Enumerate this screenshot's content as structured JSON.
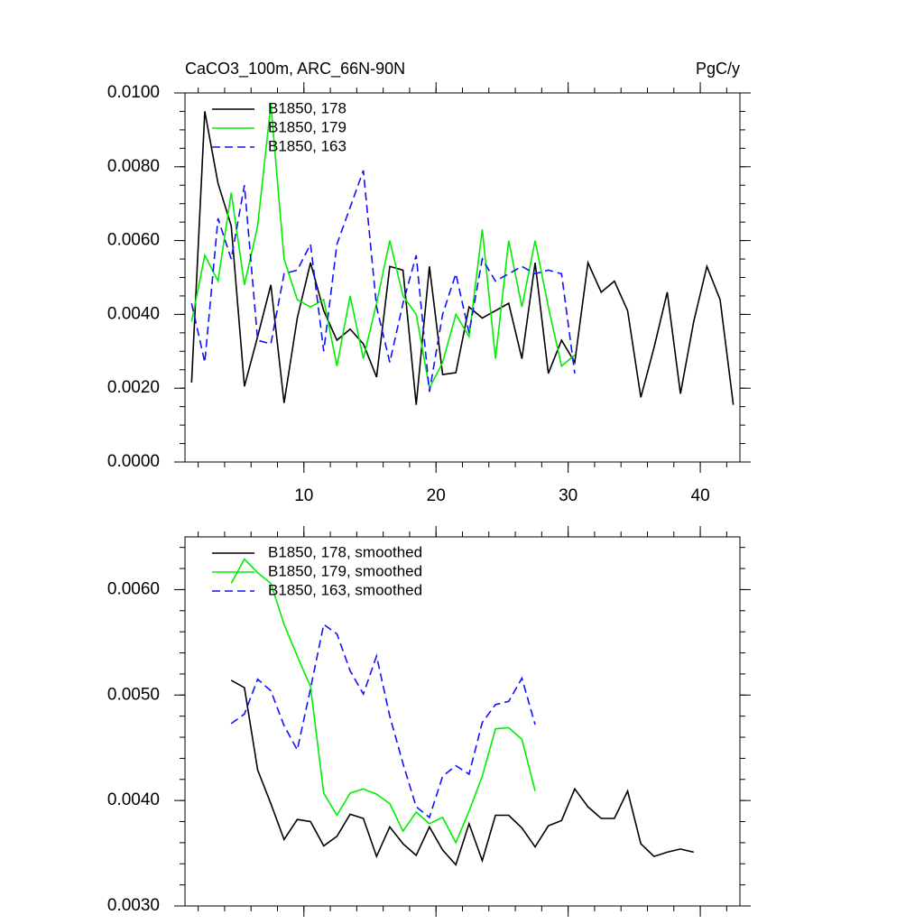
{
  "chart_data": [
    {
      "type": "line",
      "title": "CaCO3_100m, ARC_66N-90N",
      "units_label": "PgC/y",
      "x": [
        1.5,
        2.5,
        3.5,
        4.5,
        5.5,
        6.5,
        7.5,
        8.5,
        9.5,
        10.5,
        11.5,
        12.5,
        13.5,
        14.5,
        15.5,
        16.5,
        17.5,
        18.5,
        19.5,
        20.5,
        21.5,
        22.5,
        23.5,
        24.5,
        25.5,
        26.5,
        27.5,
        28.5,
        29.5,
        30.5,
        31.5,
        32.5,
        33.5,
        34.5,
        35.5,
        36.5,
        37.5,
        38.5,
        39.5,
        40.5,
        41.5,
        42.5
      ],
      "series": [
        {
          "name": "B1850, 178",
          "color": "#000000",
          "dashed": false,
          "values": [
            0.00215,
            0.0095,
            0.00755,
            0.0064,
            0.00205,
            0.0034,
            0.0048,
            0.0016,
            0.0039,
            0.0054,
            0.0041,
            0.0033,
            0.0036,
            0.0032,
            0.0023,
            0.0053,
            0.0052,
            0.00155,
            0.0053,
            0.00237,
            0.00242,
            0.0042,
            0.0039,
            0.0041,
            0.0043,
            0.0028,
            0.0054,
            0.0024,
            0.0033,
            0.0027,
            0.0054,
            0.0046,
            0.0049,
            0.0041,
            0.00175,
            0.0031,
            0.0046,
            0.00185,
            0.0038,
            0.0053,
            0.0044,
            0.00155
          ]
        },
        {
          "name": "B1850, 179",
          "color": "#00ee00",
          "dashed": false,
          "values": [
            0.0038,
            0.0056,
            0.0049,
            0.0073,
            0.0048,
            0.0064,
            0.0097,
            0.0055,
            0.0044,
            0.0042,
            0.0044,
            0.0026,
            0.0045,
            0.0028,
            0.0043,
            0.006,
            0.0045,
            0.004,
            0.002,
            0.0027,
            0.004,
            0.0034,
            0.0063,
            0.0028,
            0.006,
            0.0042,
            0.006,
            0.0042,
            0.0026,
            0.0029,
            null,
            null,
            null,
            null,
            null,
            null,
            null,
            null,
            null,
            null,
            null,
            null
          ]
        },
        {
          "name": "B1850, 163",
          "color": "#1010ff",
          "dashed": true,
          "values": [
            0.0043,
            0.0027,
            0.0066,
            0.0055,
            0.0075,
            0.0033,
            0.0032,
            0.0051,
            0.0052,
            0.0059,
            0.003,
            0.0059,
            0.0069,
            0.0079,
            0.0042,
            0.0027,
            0.0043,
            0.0056,
            0.0019,
            0.004,
            0.0051,
            0.0035,
            0.0055,
            0.0049,
            0.0051,
            0.0053,
            0.0051,
            0.0052,
            0.0051,
            0.0024,
            null,
            null,
            null,
            null,
            null,
            null,
            null,
            null,
            null,
            null,
            null,
            null
          ]
        }
      ],
      "xlim": [
        1,
        43
      ],
      "xticks": [
        10,
        20,
        30,
        40
      ],
      "xtick_labels": true,
      "ylim": [
        0,
        0.01
      ],
      "yticks": [
        {
          "value": 0,
          "label": "0.0000"
        },
        {
          "value": 0.002,
          "label": "0.0020"
        },
        {
          "value": 0.004,
          "label": "0.0040"
        },
        {
          "value": 0.006,
          "label": "0.0060"
        },
        {
          "value": 0.008,
          "label": "0.0080"
        },
        {
          "value": 0.01,
          "label": "0.0100"
        }
      ],
      "legend": "upper left"
    },
    {
      "type": "line",
      "x": [
        4.5,
        5.5,
        6.5,
        7.5,
        8.5,
        9.5,
        10.5,
        11.5,
        12.5,
        13.5,
        14.5,
        15.5,
        16.5,
        17.5,
        18.5,
        19.5,
        20.5,
        21.5,
        22.5,
        23.5,
        24.5,
        25.5,
        26.5,
        27.5,
        28.5,
        29.5,
        30.5,
        31.5,
        32.5,
        33.5,
        34.5,
        35.5,
        36.5,
        37.5,
        38.5,
        39.5
      ],
      "series": [
        {
          "name": "B1850, 178, smoothed",
          "color": "#000000",
          "dashed": false,
          "values": [
            0.00514,
            0.00507,
            0.00429,
            0.00397,
            0.00363,
            0.00382,
            0.0038,
            0.00357,
            0.00366,
            0.00387,
            0.00383,
            0.00347,
            0.00375,
            0.00359,
            0.00348,
            0.00375,
            0.00353,
            0.00339,
            0.00378,
            0.00343,
            0.00386,
            0.00386,
            0.00374,
            0.00356,
            0.00376,
            0.00381,
            0.00411,
            0.00394,
            0.00383,
            0.00383,
            0.00409,
            0.00359,
            0.00347,
            0.00351,
            0.00354,
            0.00351
          ]
        },
        {
          "name": "B1850, 179, smoothed",
          "color": "#00ee00",
          "dashed": false,
          "values": [
            0.00606,
            0.00629,
            0.00616,
            0.00606,
            0.00567,
            0.00537,
            0.00508,
            0.00407,
            0.00386,
            0.00407,
            0.00411,
            0.00406,
            0.00397,
            0.00371,
            0.00389,
            0.00378,
            0.00384,
            0.0036,
            0.0039,
            0.00423,
            0.00468,
            0.00469,
            0.00458,
            0.00409,
            null,
            null,
            null,
            null,
            null,
            null,
            null,
            null,
            null,
            null,
            null,
            null
          ]
        },
        {
          "name": "B1850, 163, smoothed",
          "color": "#1010ff",
          "dashed": true,
          "values": [
            0.00473,
            0.00482,
            0.00515,
            0.00504,
            0.00471,
            0.00448,
            0.00506,
            0.00567,
            0.00558,
            0.00523,
            0.00501,
            0.00537,
            0.0048,
            0.00435,
            0.00394,
            0.00384,
            0.00423,
            0.00433,
            0.00425,
            0.00474,
            0.00491,
            0.00494,
            0.00516,
            0.00472,
            null,
            null,
            null,
            null,
            null,
            null,
            null,
            null,
            null,
            null,
            null,
            null
          ]
        }
      ],
      "xlim": [
        1,
        43
      ],
      "xticks": [
        10,
        20,
        30,
        40
      ],
      "xtick_labels": false,
      "ylim": [
        0.003,
        0.0065
      ],
      "yticks": [
        {
          "value": 0.003,
          "label": "0.0030"
        },
        {
          "value": 0.004,
          "label": "0.0040"
        },
        {
          "value": 0.005,
          "label": "0.0050"
        },
        {
          "value": 0.006,
          "label": "0.0060"
        }
      ],
      "legend": "upper left"
    }
  ]
}
